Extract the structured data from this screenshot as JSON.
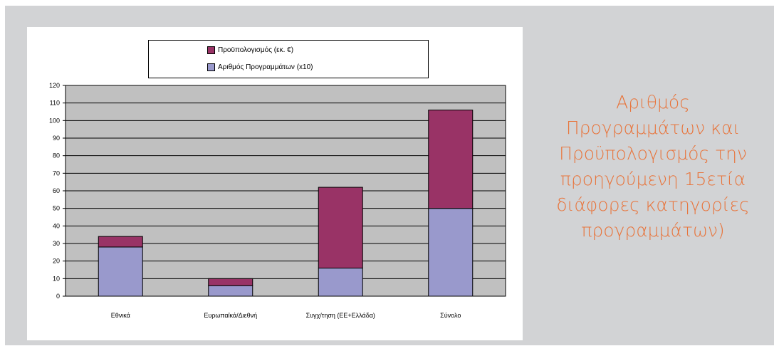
{
  "caption": {
    "lines": [
      "Αριθμός",
      "Προγραμμάτων και",
      "Προϋπολογισμός την",
      "προηγούμενη 15ετία",
      "διάφορες κατηγορίες",
      "προγραμμάτων)"
    ],
    "color": "#e8743b"
  },
  "colors": {
    "panel_bg": "#d2d3d5",
    "plot_bg": "#c0c0c0",
    "budget": "#993366",
    "programs": "#9999cc"
  },
  "chart_data": {
    "type": "bar",
    "stacked": true,
    "categories": [
      "Εθνικά",
      "Ευρωπαϊκά/Διεθνή",
      "Συγχ/τηση (ΕΕ+Ελλάδα)",
      "Σύνολο"
    ],
    "series": [
      {
        "name": "Αριθμός Προγραμμάτων (x10)",
        "values": [
          28,
          6,
          16,
          50
        ],
        "color": "#9999cc"
      },
      {
        "name": "Προϋπολογισμός (εκ. €)",
        "values": [
          6,
          4,
          46,
          56
        ],
        "color": "#993366"
      }
    ],
    "legend_order": [
      "Προϋπολογισμός (εκ. €)",
      "Αριθμός Προγραμμάτων (x10)"
    ],
    "ylim": [
      0,
      120
    ],
    "yticks": [
      "0",
      "10",
      "20",
      "30",
      "40",
      "50",
      "60",
      "70",
      "80",
      "90",
      "100",
      "110",
      "120"
    ],
    "grid": true,
    "legend_position": "top"
  }
}
